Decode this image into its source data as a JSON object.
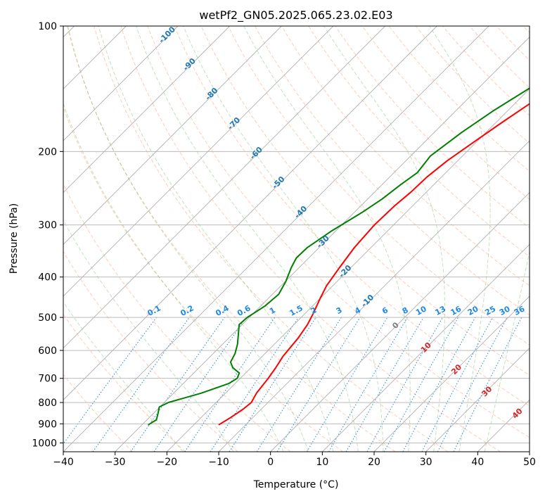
{
  "chart_data": {
    "type": "line",
    "chart_kind": "skew-T log-P",
    "title": "wetPf2_GN05.2025.065.23.02.E03",
    "xlabel": "Temperature (°C)",
    "ylabel": "Pressure (hPa)",
    "xlim": [
      -40,
      50
    ],
    "ylim": [
      1050,
      100
    ],
    "yscale": "log",
    "grid": true,
    "x_ticks": [
      -40,
      -30,
      -20,
      -10,
      0,
      10,
      20,
      30,
      40,
      50
    ],
    "x_tick_labels": [
      "−40",
      "−30",
      "−20",
      "−10",
      "0",
      "10",
      "20",
      "30",
      "40",
      "50"
    ],
    "y_ticks": [
      100,
      200,
      300,
      400,
      500,
      600,
      700,
      800,
      900,
      1000
    ],
    "y_tick_labels": [
      "100",
      "200",
      "300",
      "400",
      "500",
      "600",
      "700",
      "800",
      "900",
      "1000"
    ],
    "series": [
      {
        "role": "temperature",
        "color": "#ff0000",
        "points": [
          [
            905,
            -15.2
          ],
          [
            870,
            -14.3
          ],
          [
            830,
            -13.5
          ],
          [
            800,
            -13.2
          ],
          [
            760,
            -14.0
          ],
          [
            700,
            -14.6
          ],
          [
            660,
            -15.2
          ],
          [
            620,
            -16.0
          ],
          [
            560,
            -16.6
          ],
          [
            520,
            -17.4
          ],
          [
            490,
            -18.4
          ],
          [
            450,
            -20.0
          ],
          [
            420,
            -21.2
          ],
          [
            380,
            -22.2
          ],
          [
            340,
            -23.2
          ],
          [
            300,
            -23.7
          ],
          [
            270,
            -23.5
          ],
          [
            250,
            -23.0
          ],
          [
            230,
            -22.8
          ],
          [
            210,
            -22.0
          ],
          [
            190,
            -20.5
          ],
          [
            170,
            -18.8
          ],
          [
            150,
            -16.7
          ],
          [
            130,
            -14.5
          ],
          [
            115,
            -12.7
          ],
          [
            100,
            -11.6
          ]
        ]
      },
      {
        "role": "dewpoint",
        "color": "#008000",
        "points": [
          [
            905,
            -28.8
          ],
          [
            880,
            -28.2
          ],
          [
            850,
            -29.1
          ],
          [
            820,
            -30.1
          ],
          [
            800,
            -29.2
          ],
          [
            760,
            -24.7
          ],
          [
            720,
            -21.2
          ],
          [
            700,
            -20.6
          ],
          [
            680,
            -21.2
          ],
          [
            660,
            -23.5
          ],
          [
            640,
            -25.0
          ],
          [
            610,
            -25.8
          ],
          [
            580,
            -27.1
          ],
          [
            550,
            -28.8
          ],
          [
            520,
            -30.6
          ],
          [
            500,
            -30.4
          ],
          [
            470,
            -29.2
          ],
          [
            440,
            -28.8
          ],
          [
            410,
            -29.9
          ],
          [
            380,
            -31.5
          ],
          [
            360,
            -32.4
          ],
          [
            340,
            -32.3
          ],
          [
            310,
            -30.8
          ],
          [
            280,
            -28.5
          ],
          [
            260,
            -27.2
          ],
          [
            240,
            -26.4
          ],
          [
            225,
            -25.5
          ],
          [
            205,
            -26.2
          ],
          [
            180,
            -24.7
          ],
          [
            160,
            -22.8
          ],
          [
            140,
            -20.0
          ],
          [
            120,
            -16.8
          ],
          [
            100,
            -14.6
          ]
        ]
      }
    ],
    "isotherm_labels": [
      "-100",
      "-90",
      "-80",
      "-70",
      "-60",
      "-50",
      "-40",
      "-30",
      "-20",
      "-10"
    ],
    "mixing_ratio_labels": [
      "0.1",
      "0.2",
      "0.4",
      "0.6",
      "1",
      "1.5",
      "2",
      "3",
      "4",
      "6",
      "8",
      "10",
      "13",
      "16",
      "20",
      "25",
      "30",
      "36"
    ],
    "dry_adiabat_labels": [
      "0",
      "10",
      "20",
      "30",
      "40"
    ],
    "colors": {
      "temperature": "#ff0000",
      "dewpoint": "#008000",
      "isotherm_label": "#1f77b4",
      "mixing_ratio": "#1e88e5",
      "dry_adiabat": "#ff7f50",
      "moist_adiabat": "#2ca02c",
      "adiabat_label": "#d62728",
      "zero_label": "#808080"
    }
  }
}
